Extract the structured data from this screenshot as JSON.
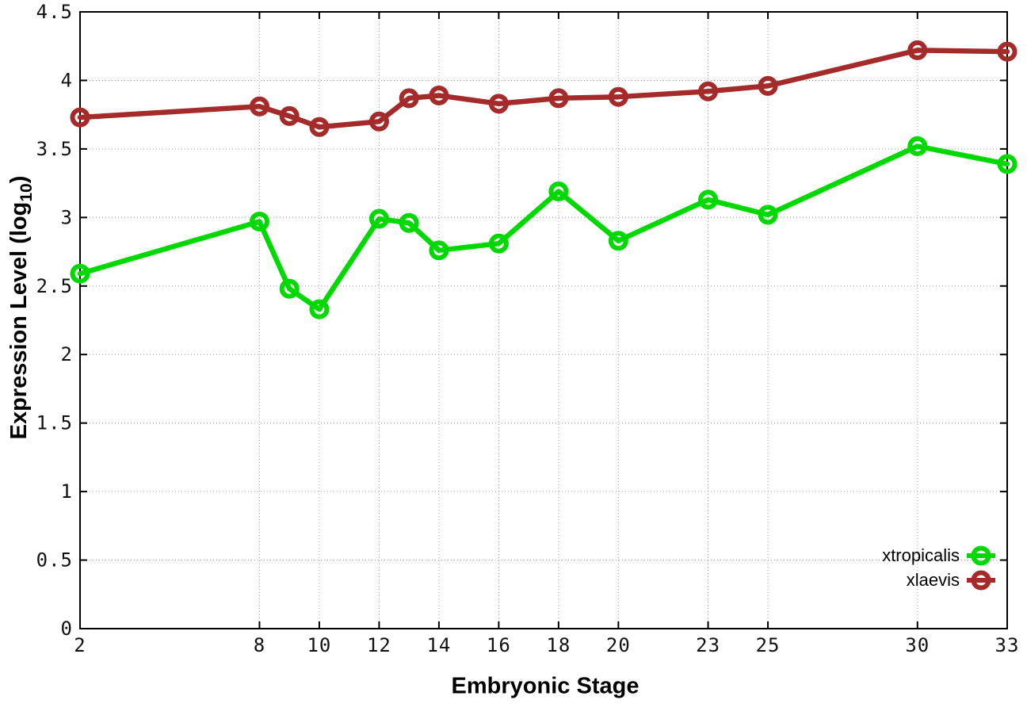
{
  "figure": {
    "background": "#ffffff",
    "xlabel": "Embryonic Stage",
    "ylabel_prefix": "Expression Level (log",
    "ylabel_sub": "10",
    "ylabel_suffix": ")"
  },
  "chart_data": {
    "type": "line",
    "title": "",
    "xlabel": "Embryonic Stage",
    "ylabel": "Expression Level (log10)",
    "x": [
      2,
      8,
      9,
      10,
      12,
      13,
      14,
      16,
      18,
      20,
      23,
      25,
      30,
      33
    ],
    "series": [
      {
        "name": "xtropicalis",
        "color": "#00d900",
        "marker": "open-circle",
        "values": [
          2.59,
          2.97,
          2.48,
          2.33,
          2.99,
          2.96,
          2.76,
          2.81,
          3.19,
          2.83,
          3.13,
          3.02,
          3.52,
          3.39
        ]
      },
      {
        "name": "xlaevis",
        "color": "#a52a2a",
        "marker": "open-circle",
        "values": [
          3.73,
          3.81,
          3.74,
          3.66,
          3.7,
          3.87,
          3.89,
          3.83,
          3.87,
          3.88,
          3.92,
          3.96,
          4.22,
          4.21
        ]
      }
    ],
    "xlim": [
      2,
      33
    ],
    "ylim": [
      0,
      4.5
    ],
    "xticks": [
      2,
      8,
      10,
      12,
      14,
      16,
      18,
      20,
      23,
      25,
      30,
      33
    ],
    "yticks": [
      0,
      0.5,
      1,
      1.5,
      2,
      2.5,
      3,
      3.5,
      4,
      4.5
    ],
    "grid": true,
    "grid_style": "dotted",
    "grid_color": "#a0a0a0",
    "border_color": "#000000",
    "legend_position": "bottom-right"
  }
}
